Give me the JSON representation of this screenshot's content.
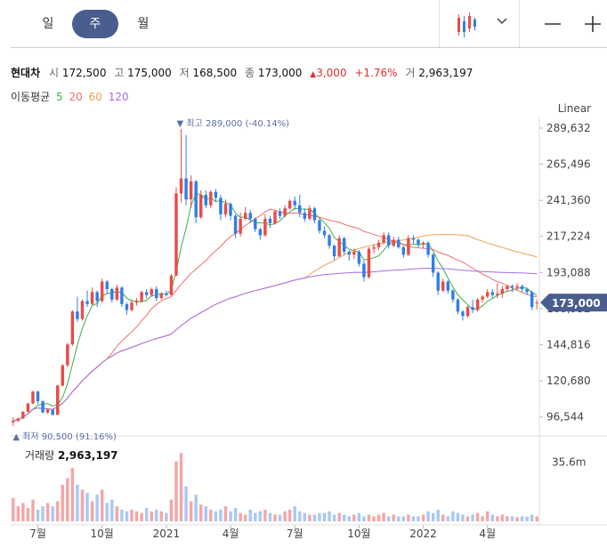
{
  "toolbar": {
    "tabs": [
      {
        "label": "일",
        "active": false
      },
      {
        "label": "주",
        "active": true
      },
      {
        "label": "월",
        "active": false
      }
    ],
    "chart_type_icon": "candlestick-icon",
    "dropdown_icon": "chevron-down-icon",
    "zoom_out_icon": "minus-icon",
    "zoom_in_icon": "plus-icon"
  },
  "quote": {
    "name": "현대차",
    "open_label": "시",
    "open": "172,500",
    "high_label": "고",
    "high": "175,000",
    "low_label": "저",
    "low": "168,500",
    "close_label": "종",
    "close": "173,000",
    "change": "3,000",
    "change_pct": "+1.76%",
    "volume_label": "거",
    "volume": "2,963,197"
  },
  "moving_average": {
    "label": "이동평균",
    "periods": [
      {
        "label": "5",
        "color": "#3fae49"
      },
      {
        "label": "20",
        "color": "#f26d6d"
      },
      {
        "label": "60",
        "color": "#f0a055"
      },
      {
        "label": "120",
        "color": "#a66de6"
      }
    ]
  },
  "scale_mode": "Linear",
  "volume_panel": {
    "label": "거래량",
    "value": "2,963,197"
  },
  "colors": {
    "up": "#e84c48",
    "down": "#2f7ee8",
    "vol_up": "#f4a6a6",
    "vol_down": "#a9c8f4",
    "price_badge": "#4a5d8f"
  },
  "chart_data": {
    "type": "candlestick",
    "y_ticks": [
      "289,632",
      "265,496",
      "241,360",
      "217,224",
      "193,088",
      "168,952",
      "144,816",
      "120,680",
      "96,544"
    ],
    "ylim": [
      91000,
      292000
    ],
    "x_ticks": [
      "7월",
      "10월",
      "2021",
      "4월",
      "7월",
      "10월",
      "2022",
      "4월"
    ],
    "x_tick_weeks": [
      5.5,
      18.5,
      31.5,
      44.5,
      57.5,
      70.5,
      83.5,
      96.5
    ],
    "week_count": 107,
    "max_annotation": {
      "label": "최고 289,000 (-40.14%)",
      "value": 289000,
      "week": 34
    },
    "min_annotation": {
      "label": "최저 90,500 (91.16%)",
      "value": 90500,
      "week": 1
    },
    "last_price": {
      "label": "173,000",
      "value": 173000
    },
    "volume_tick": {
      "label": "35.6m",
      "value": 35600000
    },
    "ohlc": [
      [
        93000,
        96500,
        90500,
        94000
      ],
      [
        94000,
        96000,
        93000,
        95500
      ],
      [
        95500,
        100500,
        95000,
        100000
      ],
      [
        100000,
        106000,
        99500,
        105500
      ],
      [
        105500,
        114000,
        105000,
        113500
      ],
      [
        113500,
        114000,
        105000,
        107000
      ],
      [
        107000,
        107500,
        99000,
        99500
      ],
      [
        99500,
        102000,
        98500,
        101500
      ],
      [
        101500,
        101800,
        97500,
        98000
      ],
      [
        98000,
        118000,
        97800,
        117500
      ],
      [
        117500,
        132000,
        117000,
        131000
      ],
      [
        131000,
        146000,
        130000,
        145000
      ],
      [
        145000,
        168000,
        144000,
        167000
      ],
      [
        167000,
        177000,
        160000,
        162000
      ],
      [
        162000,
        175000,
        161000,
        174000
      ],
      [
        174000,
        181000,
        170000,
        172000
      ],
      [
        172000,
        183000,
        171000,
        180000
      ],
      [
        180000,
        181000,
        170000,
        174000
      ],
      [
        174000,
        189000,
        173000,
        187000
      ],
      [
        187000,
        188000,
        179000,
        182000
      ],
      [
        182000,
        183000,
        173000,
        175000
      ],
      [
        175000,
        185000,
        174000,
        183000
      ],
      [
        183000,
        184000,
        170000,
        172000
      ],
      [
        172000,
        173000,
        165000,
        168000
      ],
      [
        168000,
        175000,
        167000,
        173000
      ],
      [
        173000,
        176000,
        171000,
        174000
      ],
      [
        174000,
        181000,
        173000,
        180000
      ],
      [
        180000,
        182000,
        176000,
        178000
      ],
      [
        178000,
        183000,
        177000,
        182000
      ],
      [
        182000,
        184000,
        174000,
        176000
      ],
      [
        176000,
        180000,
        175000,
        179000
      ],
      [
        179000,
        181000,
        177000,
        178000
      ],
      [
        178000,
        192000,
        178000,
        191000
      ],
      [
        191000,
        250000,
        191000,
        246000
      ],
      [
        246000,
        289000,
        240000,
        256000
      ],
      [
        256000,
        285000,
        238000,
        242000
      ],
      [
        242000,
        258000,
        236000,
        254000
      ],
      [
        254000,
        255000,
        226000,
        230000
      ],
      [
        230000,
        248000,
        229000,
        245000
      ],
      [
        245000,
        248000,
        236000,
        238000
      ],
      [
        238000,
        248000,
        236000,
        247000
      ],
      [
        247000,
        249000,
        240000,
        243000
      ],
      [
        243000,
        245000,
        228000,
        232000
      ],
      [
        232000,
        242000,
        230000,
        239000
      ],
      [
        239000,
        240000,
        228000,
        231000
      ],
      [
        231000,
        232000,
        216000,
        219000
      ],
      [
        219000,
        233000,
        217000,
        229000
      ],
      [
        229000,
        237000,
        228000,
        233000
      ],
      [
        233000,
        235000,
        226000,
        229000
      ],
      [
        229000,
        230000,
        220000,
        222000
      ],
      [
        222000,
        223000,
        215000,
        218000
      ],
      [
        218000,
        232000,
        217000,
        229000
      ],
      [
        229000,
        231000,
        223000,
        226000
      ],
      [
        226000,
        235000,
        225000,
        234000
      ],
      [
        234000,
        236000,
        229000,
        231000
      ],
      [
        231000,
        238000,
        230000,
        236000
      ],
      [
        236000,
        242000,
        235000,
        241000
      ],
      [
        241000,
        244000,
        235000,
        238000
      ],
      [
        238000,
        245000,
        230000,
        233000
      ],
      [
        233000,
        236000,
        227000,
        229000
      ],
      [
        229000,
        238000,
        228000,
        236000
      ],
      [
        236000,
        237000,
        226000,
        228000
      ],
      [
        228000,
        229000,
        219000,
        221000
      ],
      [
        221000,
        224000,
        216000,
        218000
      ],
      [
        218000,
        219000,
        209000,
        211000
      ],
      [
        211000,
        212000,
        201000,
        204000
      ],
      [
        204000,
        218000,
        203000,
        216000
      ],
      [
        216000,
        217000,
        205000,
        207000
      ],
      [
        207000,
        208000,
        201000,
        205000
      ],
      [
        205000,
        209000,
        202000,
        207000
      ],
      [
        207000,
        208000,
        197000,
        199000
      ],
      [
        199000,
        201000,
        187000,
        190000
      ],
      [
        190000,
        210000,
        189000,
        209000
      ],
      [
        209000,
        212000,
        206000,
        210000
      ],
      [
        210000,
        215000,
        208000,
        213000
      ],
      [
        213000,
        220000,
        212000,
        218000
      ],
      [
        218000,
        220000,
        209000,
        211000
      ],
      [
        211000,
        217000,
        210000,
        215000
      ],
      [
        215000,
        217000,
        209000,
        210000
      ],
      [
        210000,
        211000,
        203000,
        205000
      ],
      [
        205000,
        218000,
        204000,
        216000
      ],
      [
        216000,
        218000,
        212000,
        215000
      ],
      [
        215000,
        216000,
        210000,
        212000
      ],
      [
        212000,
        214000,
        209000,
        213000
      ],
      [
        213000,
        214000,
        203000,
        205000
      ],
      [
        205000,
        206000,
        190000,
        193000
      ],
      [
        193000,
        194000,
        178000,
        181000
      ],
      [
        181000,
        189000,
        180000,
        187000
      ],
      [
        187000,
        188000,
        179000,
        181000
      ],
      [
        181000,
        182000,
        173000,
        175000
      ],
      [
        175000,
        176000,
        165000,
        167000
      ],
      [
        167000,
        168000,
        161000,
        164000
      ],
      [
        164000,
        171000,
        163000,
        170000
      ],
      [
        170000,
        175000,
        166000,
        168000
      ],
      [
        168000,
        176000,
        167000,
        175000
      ],
      [
        175000,
        178000,
        173000,
        177000
      ],
      [
        177000,
        182000,
        176000,
        180000
      ],
      [
        180000,
        182000,
        176000,
        178000
      ],
      [
        178000,
        186000,
        176000,
        179000
      ],
      [
        179000,
        184000,
        176000,
        182000
      ],
      [
        182000,
        185000,
        180000,
        184000
      ],
      [
        184000,
        185000,
        180000,
        183000
      ],
      [
        183000,
        186000,
        181000,
        184000
      ],
      [
        184000,
        185000,
        180000,
        182000
      ],
      [
        182000,
        183000,
        178000,
        180000
      ],
      [
        180000,
        181000,
        168000,
        170000
      ],
      [
        172500,
        175000,
        168500,
        173000
      ]
    ],
    "volume": [
      14000000,
      9000000,
      11000000,
      8000000,
      13000000,
      7000000,
      9000000,
      11000000,
      9000000,
      12000000,
      22000000,
      26000000,
      32000000,
      22000000,
      19000000,
      17000000,
      12000000,
      16000000,
      19000000,
      11000000,
      13000000,
      9000000,
      7000000,
      6000000,
      7000000,
      6000000,
      5000000,
      8000000,
      6000000,
      7000000,
      6000000,
      5000000,
      13000000,
      36000000,
      41000000,
      21000000,
      12000000,
      16000000,
      10000000,
      9000000,
      7000000,
      6000000,
      7000000,
      9000000,
      6000000,
      8000000,
      5000000,
      4000000,
      7000000,
      5000000,
      6000000,
      7000000,
      5000000,
      4000000,
      4000000,
      6000000,
      7000000,
      9000000,
      6000000,
      5000000,
      4000000,
      4000000,
      5000000,
      5000000,
      6000000,
      4000000,
      5000000,
      4000000,
      3000000,
      4000000,
      5000000,
      3000000,
      4000000,
      3000000,
      4000000,
      5000000,
      3000000,
      4000000,
      3000000,
      3000000,
      4000000,
      3000000,
      3000000,
      4000000,
      6000000,
      5000000,
      7000000,
      4000000,
      3000000,
      6000000,
      5000000,
      4000000,
      3000000,
      4000000,
      5000000,
      3000000,
      6000000,
      4000000,
      3000000,
      4000000,
      3000000,
      3000000,
      2500000,
      3000000,
      2800000,
      4000000,
      2963197
    ]
  }
}
